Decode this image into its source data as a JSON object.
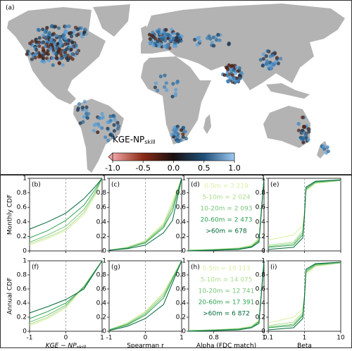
{
  "chart_data": [
    {
      "type": "map",
      "panel": "(a)",
      "colorbar_label": "KGE-NP",
      "colorbar_label_sub": "skill",
      "clim": [
        -1,
        1
      ],
      "colormap": [
        "#f2a6a6",
        "#8a2a14",
        "#1a1010",
        "#1f4f78",
        "#9ec9f2"
      ],
      "cticks": [
        {
          "value": -1,
          "label": "-1.0"
        },
        -0.5,
        {
          "value": 0,
          "label": "0.0"
        },
        0.5,
        {
          "value": 1,
          "label": "1.0"
        }
      ]
    },
    {
      "type": "line",
      "panel": "(b)",
      "ylabel": "Monthly CDF",
      "xlim": [
        -1,
        1
      ],
      "xticks": [
        -1,
        0,
        1
      ],
      "ylim": [
        0,
        1
      ],
      "yticks": [
        0,
        0.2,
        0.4,
        0.6,
        0.8,
        1
      ],
      "vline": 0,
      "x": [
        -1,
        -0.5,
        0,
        0.5,
        0.8,
        1
      ],
      "series": [
        {
          "color": "#d9f0a3",
          "values": [
            0.08,
            0.17,
            0.28,
            0.5,
            0.75,
            1
          ]
        },
        {
          "color": "#addd8e",
          "values": [
            0.1,
            0.19,
            0.3,
            0.53,
            0.78,
            1
          ]
        },
        {
          "color": "#78c679",
          "values": [
            0.12,
            0.22,
            0.34,
            0.57,
            0.8,
            1
          ]
        },
        {
          "color": "#31a354",
          "values": [
            0.18,
            0.28,
            0.42,
            0.63,
            0.84,
            1
          ]
        },
        {
          "color": "#006837",
          "values": [
            0.3,
            0.4,
            0.52,
            0.72,
            0.88,
            1
          ]
        }
      ]
    },
    {
      "type": "line",
      "panel": "(c)",
      "xlim": [
        -1,
        1
      ],
      "xticks": [
        -1,
        0,
        1
      ],
      "ylim": [
        0,
        1
      ],
      "yticks": [
        0,
        0.2,
        0.4,
        0.6,
        0.8,
        1
      ],
      "vline": 0,
      "x": [
        -1,
        -0.5,
        0,
        0.5,
        0.75,
        1
      ],
      "series": [
        {
          "color": "#d9f0a3",
          "values": [
            0.01,
            0.05,
            0.14,
            0.38,
            0.68,
            1
          ]
        },
        {
          "color": "#addd8e",
          "values": [
            0.01,
            0.05,
            0.13,
            0.36,
            0.64,
            1
          ]
        },
        {
          "color": "#78c679",
          "values": [
            0.01,
            0.04,
            0.12,
            0.34,
            0.6,
            1
          ]
        },
        {
          "color": "#31a354",
          "values": [
            0.01,
            0.04,
            0.11,
            0.32,
            0.55,
            1
          ]
        },
        {
          "color": "#006837",
          "values": [
            0.01,
            0.03,
            0.08,
            0.25,
            0.42,
            1
          ]
        }
      ]
    },
    {
      "type": "line",
      "panel": "(d)",
      "xlim": [
        0.7,
        1
      ],
      "xticks": [
        0.8,
        1
      ],
      "ylim": [
        0,
        1
      ],
      "yticks": [
        0,
        0.2,
        0.4,
        0.6,
        0.8,
        1
      ],
      "x": [
        0.7,
        0.8,
        0.9,
        0.95,
        0.98,
        1
      ],
      "series": [
        {
          "name": "0-5m = 3 219",
          "color": "#d9f0a3",
          "values": [
            0.01,
            0.02,
            0.04,
            0.08,
            0.18,
            1
          ]
        },
        {
          "name": "5-10m = 2 024",
          "color": "#addd8e",
          "values": [
            0.01,
            0.02,
            0.04,
            0.07,
            0.16,
            1
          ]
        },
        {
          "name": "10-20m = 2 093",
          "color": "#78c679",
          "values": [
            0.01,
            0.02,
            0.03,
            0.06,
            0.15,
            1
          ]
        },
        {
          "name": "20-60m = 2 473",
          "color": "#31a354",
          "values": [
            0,
            0.01,
            0.03,
            0.06,
            0.14,
            1
          ]
        },
        {
          "name": ">60m = 678",
          "color": "#006837",
          "values": [
            0,
            0.01,
            0.02,
            0.05,
            0.12,
            1
          ]
        }
      ]
    },
    {
      "type": "line",
      "panel": "(e)",
      "xscale": "log",
      "xlim": [
        0.1,
        10
      ],
      "xticks": [
        0.1,
        1,
        10
      ],
      "ylim": [
        0,
        1
      ],
      "yticks": [
        0,
        0.2,
        0.4,
        0.6,
        0.8,
        1
      ],
      "vline": 1,
      "x": [
        0.1,
        0.5,
        0.9,
        1,
        1.1,
        2,
        10
      ],
      "series": [
        {
          "color": "#d9f0a3",
          "values": [
            0.15,
            0.22,
            0.35,
            0.55,
            0.82,
            0.93,
            0.97
          ]
        },
        {
          "color": "#addd8e",
          "values": [
            0.08,
            0.12,
            0.28,
            0.52,
            0.84,
            0.94,
            0.97
          ]
        },
        {
          "color": "#78c679",
          "values": [
            0.06,
            0.1,
            0.25,
            0.5,
            0.85,
            0.94,
            0.97
          ]
        },
        {
          "color": "#31a354",
          "values": [
            0.05,
            0.08,
            0.22,
            0.5,
            0.86,
            0.95,
            0.98
          ]
        },
        {
          "color": "#006837",
          "values": [
            0.02,
            0.05,
            0.18,
            0.48,
            0.88,
            0.96,
            0.98
          ]
        }
      ]
    },
    {
      "type": "line",
      "panel": "(f)",
      "ylabel": "Annual CDF",
      "xlabel": "KGE − NP",
      "xlabel_sub": "skill",
      "xlim": [
        -1,
        1
      ],
      "xticks": [
        -1,
        0,
        1
      ],
      "ylim": [
        0,
        1
      ],
      "yticks": [
        0,
        0.2,
        0.4,
        0.6,
        0.8,
        1
      ],
      "vline": 0,
      "x": [
        -1,
        -0.5,
        0,
        0.5,
        1
      ],
      "series": [
        {
          "color": "#d9f0a3",
          "values": [
            0.08,
            0.18,
            0.33,
            0.63,
            1
          ]
        },
        {
          "color": "#addd8e",
          "values": [
            0.1,
            0.2,
            0.35,
            0.64,
            1
          ]
        },
        {
          "color": "#78c679",
          "values": [
            0.13,
            0.23,
            0.37,
            0.64,
            1
          ]
        },
        {
          "color": "#31a354",
          "values": [
            0.18,
            0.28,
            0.4,
            0.62,
            1
          ]
        },
        {
          "color": "#006837",
          "values": [
            0.26,
            0.35,
            0.45,
            0.6,
            1
          ]
        }
      ]
    },
    {
      "type": "line",
      "panel": "(g)",
      "xlabel": "Spearman r",
      "xlim": [
        -1,
        1
      ],
      "xticks": [
        -1,
        0,
        1
      ],
      "ylim": [
        0,
        1
      ],
      "yticks": [
        0,
        0.2,
        0.4,
        0.6,
        0.8,
        1
      ],
      "vline": 0,
      "x": [
        -1,
        -0.5,
        0,
        0.5,
        1
      ],
      "series": [
        {
          "color": "#d9f0a3",
          "values": [
            0.02,
            0.12,
            0.28,
            0.55,
            1
          ]
        },
        {
          "color": "#addd8e",
          "values": [
            0.02,
            0.11,
            0.27,
            0.53,
            1
          ]
        },
        {
          "color": "#78c679",
          "values": [
            0.02,
            0.1,
            0.25,
            0.5,
            1
          ]
        },
        {
          "color": "#31a354",
          "values": [
            0.02,
            0.09,
            0.23,
            0.47,
            1
          ]
        },
        {
          "color": "#006837",
          "values": [
            0.01,
            0.07,
            0.18,
            0.38,
            1
          ]
        }
      ]
    },
    {
      "type": "line",
      "panel": "(h)",
      "xlabel": "Alpha (FDC match)",
      "xlim": [
        0.7,
        1
      ],
      "xticks": [
        0.8,
        1
      ],
      "ylim": [
        0,
        1
      ],
      "yticks": [
        0,
        0.2,
        0.4,
        0.6,
        0.8,
        1
      ],
      "x": [
        0.7,
        0.8,
        0.9,
        0.95,
        0.98,
        1
      ],
      "series": [
        {
          "name": "0-5m = 19 113",
          "color": "#d9f0a3",
          "values": [
            0.01,
            0.02,
            0.04,
            0.07,
            0.16,
            1
          ]
        },
        {
          "name": "5-10m = 14 075",
          "color": "#addd8e",
          "values": [
            0.01,
            0.02,
            0.04,
            0.07,
            0.15,
            1
          ]
        },
        {
          "name": "10-20m = 12 741",
          "color": "#78c679",
          "values": [
            0.01,
            0.02,
            0.03,
            0.06,
            0.14,
            1
          ]
        },
        {
          "name": "20-60m = 17 391",
          "color": "#31a354",
          "values": [
            0,
            0.01,
            0.03,
            0.05,
            0.13,
            1
          ]
        },
        {
          "name": ">60m = 6 872",
          "color": "#006837",
          "values": [
            0,
            0.01,
            0.02,
            0.05,
            0.11,
            1
          ]
        }
      ]
    },
    {
      "type": "line",
      "panel": "(i)",
      "xlabel": "Beta",
      "xscale": "log",
      "xlim": [
        0.1,
        10
      ],
      "xticks": [
        0.1,
        1,
        10
      ],
      "ylim": [
        0,
        1
      ],
      "yticks": [
        0,
        0.2,
        0.4,
        0.6,
        0.8,
        1
      ],
      "vline": 1,
      "x": [
        0.1,
        0.5,
        0.9,
        1,
        1.1,
        2,
        10
      ],
      "series": [
        {
          "color": "#d9f0a3",
          "values": [
            0.12,
            0.2,
            0.32,
            0.52,
            0.8,
            0.92,
            0.97
          ]
        },
        {
          "color": "#addd8e",
          "values": [
            0.08,
            0.13,
            0.27,
            0.5,
            0.83,
            0.93,
            0.97
          ]
        },
        {
          "color": "#78c679",
          "values": [
            0.06,
            0.1,
            0.24,
            0.5,
            0.84,
            0.94,
            0.97
          ]
        },
        {
          "color": "#31a354",
          "values": [
            0.05,
            0.08,
            0.22,
            0.49,
            0.86,
            0.95,
            0.98
          ]
        },
        {
          "color": "#006837",
          "values": [
            0.02,
            0.05,
            0.18,
            0.47,
            0.88,
            0.96,
            0.98
          ]
        }
      ]
    }
  ]
}
